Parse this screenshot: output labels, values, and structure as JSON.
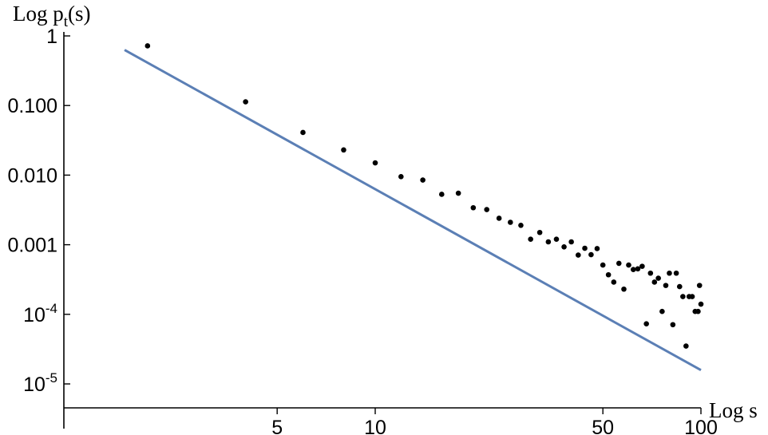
{
  "chart_data": {
    "type": "scatter",
    "xlabel": "Log s",
    "ylabel": {
      "base": "Log p",
      "subscript": "t",
      "suffix": "(s)"
    },
    "x_scale": "log",
    "y_scale": "log",
    "xlim": [
      1.3,
      100
    ],
    "ylim": [
      4.5e-06,
      1.1
    ],
    "x_ticks": [
      {
        "value": 5,
        "label": "5"
      },
      {
        "value": 10,
        "label": "10"
      },
      {
        "value": 50,
        "label": "50"
      },
      {
        "value": 100,
        "label": "100"
      }
    ],
    "y_ticks": [
      {
        "value": 1,
        "label": "1"
      },
      {
        "value": 0.1,
        "label": "0.100"
      },
      {
        "value": 0.01,
        "label": "0.010"
      },
      {
        "value": 0.001,
        "label": "0.001"
      },
      {
        "value": 0.0001,
        "base": "10",
        "exp": "-4"
      },
      {
        "value": 1e-05,
        "base": "10",
        "exp": "-5"
      }
    ],
    "grid": false,
    "series": [
      {
        "type": "scatter",
        "color": "#000000",
        "points": [
          [
            2,
            0.72
          ],
          [
            4,
            0.113
          ],
          [
            6,
            0.041
          ],
          [
            8,
            0.023
          ],
          [
            10,
            0.015
          ],
          [
            12,
            0.0095
          ],
          [
            14,
            0.0085
          ],
          [
            16,
            0.0053
          ],
          [
            18,
            0.0055
          ],
          [
            20,
            0.0034
          ],
          [
            22,
            0.0032
          ],
          [
            24,
            0.0024
          ],
          [
            26,
            0.0021
          ],
          [
            28,
            0.0019
          ],
          [
            30,
            0.0012
          ],
          [
            32,
            0.0015
          ],
          [
            34,
            0.0011
          ],
          [
            36,
            0.0012
          ],
          [
            38,
            0.00093
          ],
          [
            40,
            0.0011
          ],
          [
            42,
            0.00071
          ],
          [
            44,
            0.00089
          ],
          [
            46,
            0.00072
          ],
          [
            48,
            0.00088
          ],
          [
            50,
            0.00051
          ],
          [
            52,
            0.00037
          ],
          [
            54,
            0.00029
          ],
          [
            56,
            0.00054
          ],
          [
            58,
            0.00023
          ],
          [
            60,
            0.00051
          ],
          [
            62,
            0.00044
          ],
          [
            64,
            0.00045
          ],
          [
            66,
            0.00049
          ],
          [
            68,
            7.3e-05
          ],
          [
            70,
            0.00039
          ],
          [
            72,
            0.00029
          ],
          [
            74,
            0.00033
          ],
          [
            76,
            0.00011
          ],
          [
            78,
            0.00026
          ],
          [
            80,
            0.00039
          ],
          [
            82,
            7.1e-05
          ],
          [
            84,
            0.00039
          ],
          [
            86,
            0.00025
          ],
          [
            88,
            0.00018
          ],
          [
            90,
            3.5e-05
          ],
          [
            92,
            0.00018
          ],
          [
            94,
            0.00018
          ],
          [
            96,
            0.00011
          ],
          [
            98,
            0.00011
          ],
          [
            99,
            0.00026
          ],
          [
            100,
            0.00014
          ]
        ]
      },
      {
        "type": "line",
        "color": "#5b7fb5",
        "equation": "y = 2.5 * x^-2.6",
        "x_range": [
          1.7,
          100
        ],
        "coef": 2.5,
        "exponent": -2.6
      }
    ]
  }
}
